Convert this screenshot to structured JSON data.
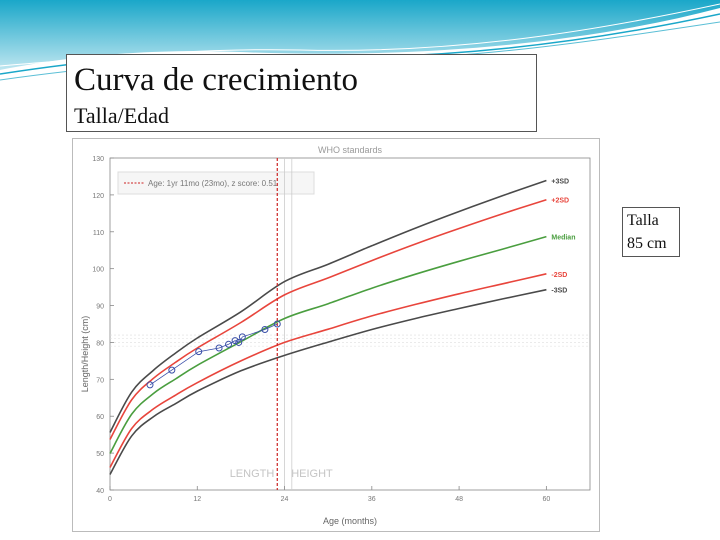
{
  "slide": {
    "title": "Curva de crecimiento",
    "subtitle": "Talla/Edad",
    "note_line1": "Talla",
    "note_line2": "85 cm"
  },
  "colors": {
    "header_wave": "#1aa7c9",
    "sd3": "#4a4a4a",
    "sd2": "#e8453c",
    "median": "#4a9e3f",
    "points": "#3a4fa8",
    "marker": "#cc2222"
  },
  "chart_data": {
    "type": "line",
    "title": "WHO standards",
    "xlabel": "Age (months)",
    "ylabel": "Length/Height (cm)",
    "xlim": [
      0,
      66
    ],
    "ylim": [
      40,
      130
    ],
    "xticks": [
      0,
      12,
      24,
      36,
      48,
      60
    ],
    "yticks": [
      40,
      50,
      60,
      70,
      80,
      90,
      100,
      110,
      120,
      130
    ],
    "grid": false,
    "legend_position": "top-left",
    "annotation": "Age: 1yr 11mo (23mo), z score: 0.51",
    "region_labels": [
      "LENGTH",
      "HEIGHT"
    ],
    "marker_age": 23,
    "x": [
      0,
      3,
      6,
      9,
      12,
      18,
      24,
      30,
      36,
      42,
      48,
      54,
      60
    ],
    "series": [
      {
        "name": "+3SD",
        "values": [
          55.6,
          66.6,
          72.5,
          77.1,
          81.2,
          88.3,
          96.5,
          101.2,
          106.2,
          111.0,
          115.5,
          119.8,
          123.9
        ]
      },
      {
        "name": "+2SD",
        "values": [
          53.7,
          64.5,
          70.3,
          74.6,
          78.5,
          85.4,
          92.9,
          97.5,
          102.2,
          106.7,
          110.9,
          114.9,
          118.7
        ]
      },
      {
        "name": "Median",
        "values": [
          49.9,
          60.6,
          66.2,
          70.1,
          73.8,
          80.2,
          86.5,
          90.5,
          94.7,
          98.5,
          102.0,
          105.3,
          108.7
        ]
      },
      {
        "name": "-2SD",
        "values": [
          46.1,
          56.7,
          62.0,
          65.7,
          69.1,
          75.0,
          80.0,
          83.6,
          87.2,
          90.3,
          93.2,
          95.9,
          98.6
        ]
      },
      {
        "name": "-3SD",
        "values": [
          44.2,
          54.7,
          59.9,
          63.4,
          66.8,
          72.3,
          76.5,
          80.1,
          83.5,
          86.5,
          89.2,
          91.8,
          94.3
        ]
      }
    ],
    "measurements": [
      {
        "x": 5.5,
        "y": 68.5
      },
      {
        "x": 8.5,
        "y": 72.5
      },
      {
        "x": 12.2,
        "y": 77.5
      },
      {
        "x": 15.0,
        "y": 78.5
      },
      {
        "x": 16.3,
        "y": 79.5
      },
      {
        "x": 17.2,
        "y": 80.5
      },
      {
        "x": 17.7,
        "y": 80.0
      },
      {
        "x": 18.2,
        "y": 81.5
      },
      {
        "x": 21.3,
        "y": 83.5
      },
      {
        "x": 23.0,
        "y": 85.0
      }
    ]
  }
}
